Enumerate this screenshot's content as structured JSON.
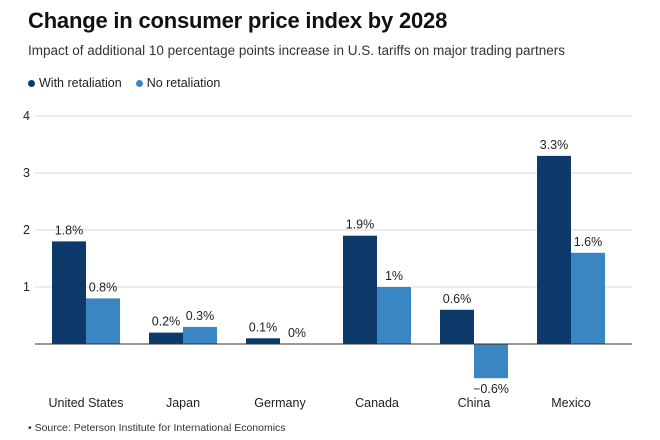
{
  "header": {
    "title": "Change in consumer price index by 2028",
    "subtitle": "Impact of additional 10 percentage points increase in U.S. tariffs on major trading partners"
  },
  "footer": {
    "source": "• Source: Peterson Institute for International Economics"
  },
  "colors": {
    "with_retaliation": "#0d3a6b",
    "no_retaliation": "#3a86c2"
  },
  "chart_data": {
    "type": "bar",
    "categories": [
      "United States",
      "Japan",
      "Germany",
      "Canada",
      "China",
      "Mexico"
    ],
    "series": [
      {
        "name": "With retaliation",
        "values": [
          1.8,
          0.2,
          0.1,
          1.9,
          0.6,
          3.3
        ],
        "labels": [
          "1.8%",
          "0.2%",
          "0.1%",
          "1.9%",
          "0.6%",
          "3.3%"
        ]
      },
      {
        "name": "No retaliation",
        "values": [
          0.8,
          0.3,
          0.0,
          1.0,
          -0.6,
          1.6
        ],
        "labels": [
          "0.8%",
          "0.3%",
          "0%",
          "1%",
          "−0.6%",
          "1.6%"
        ]
      }
    ],
    "yticks": [
      1,
      2,
      3,
      4
    ],
    "ylim": [
      -0.6,
      4
    ],
    "grid": true,
    "legend_position": "top-left"
  }
}
